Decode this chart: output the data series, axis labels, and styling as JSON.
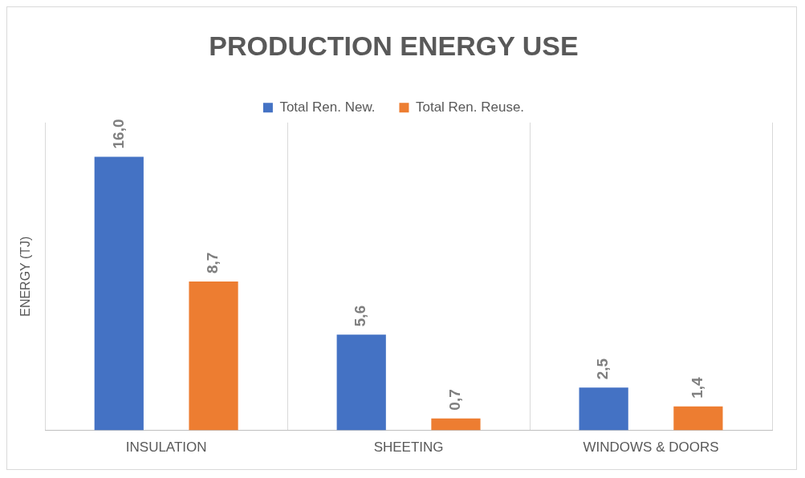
{
  "chart_data": {
    "type": "bar",
    "title": "PRODUCTION ENERGY USE",
    "ylabel": "ENERGY (TJ)",
    "categories": [
      "INSULATION",
      "SHEETING",
      "WINDOWS & DOORS"
    ],
    "series": [
      {
        "name": "Total Ren. New.",
        "color": "#4472c4",
        "values": [
          16.0,
          5.6,
          2.5
        ],
        "value_labels": [
          "16,0",
          "5,6",
          "2,5"
        ]
      },
      {
        "name": "Total Ren. Reuse.",
        "color": "#ed7d31",
        "values": [
          8.7,
          0.7,
          1.4
        ],
        "value_labels": [
          "8,7",
          "0,7",
          "1,4"
        ]
      }
    ],
    "grid": "x",
    "legend": "top",
    "tick_labels": "x"
  }
}
